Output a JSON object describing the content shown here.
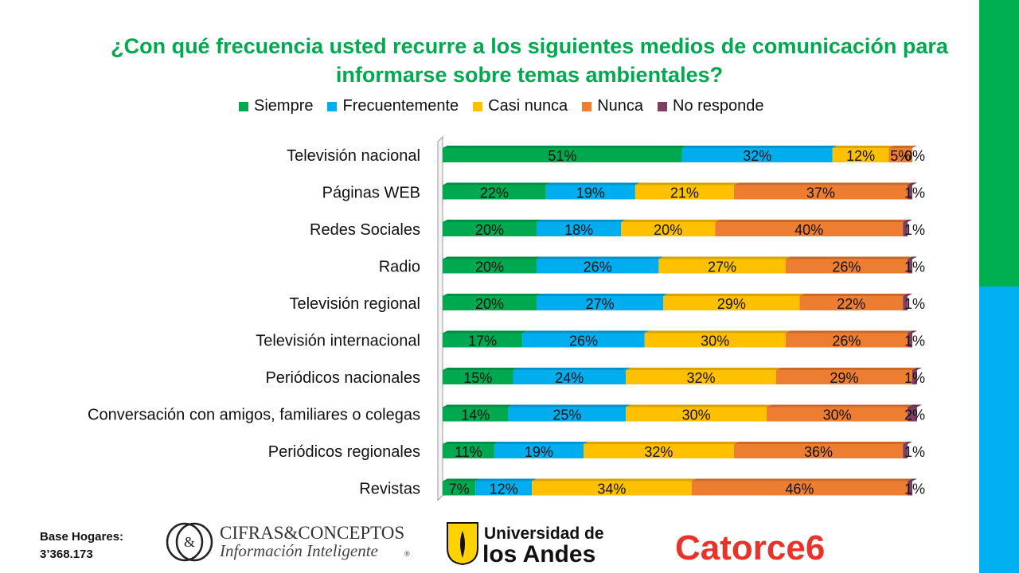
{
  "colors": {
    "siempre": "#00A94F",
    "frecuentemente": "#00AEEF",
    "casi_nunca": "#FFC000",
    "nunca": "#ED7D31",
    "no_responde": "#7B3F61",
    "title": "#00A94F",
    "side_green": "#00B050",
    "side_blue": "#00B0F0"
  },
  "title": {
    "line1": "¿Con qué frecuencia usted recurre a los siguientes medios de comunicación para",
    "line2": "informarse sobre temas ambientales?"
  },
  "legend": [
    "Siempre",
    "Frecuentemente",
    "Casi nunca",
    "Nunca",
    "No responde"
  ],
  "chart_data": {
    "type": "bar",
    "orientation": "horizontal",
    "stacked": "100%",
    "categories": [
      "Televisión nacional",
      "Páginas WEB",
      "Redes Sociales",
      "Radio",
      "Televisión regional",
      "Televisión internacional",
      "Periódicos nacionales",
      "Conversación con amigos, familiares o colegas",
      "Periódicos regionales",
      "Revistas"
    ],
    "series": [
      {
        "name": "Siempre",
        "values": [
          51,
          22,
          20,
          20,
          20,
          17,
          15,
          14,
          11,
          7
        ]
      },
      {
        "name": "Frecuentemente",
        "values": [
          32,
          19,
          18,
          26,
          27,
          26,
          24,
          25,
          19,
          12
        ]
      },
      {
        "name": "Casi nunca",
        "values": [
          12,
          21,
          20,
          27,
          29,
          30,
          32,
          30,
          32,
          34
        ]
      },
      {
        "name": "Nunca",
        "values": [
          5,
          37,
          40,
          26,
          22,
          26,
          29,
          30,
          36,
          46
        ]
      },
      {
        "name": "No responde",
        "values": [
          0,
          1,
          1,
          1,
          1,
          1,
          1,
          2,
          1,
          1
        ]
      }
    ],
    "data_label_suffix": "%",
    "legend_position": "top",
    "grid": false
  },
  "footer": {
    "base_label": "Base Hogares:",
    "base_value": "3’368.173"
  },
  "logos": {
    "cifras_line1": "CIFRAS&CONCEPTOS",
    "cifras_line2": "Información Inteligente",
    "cifras_mark": "®",
    "uandes_line1": "Universidad de",
    "uandes_line2": "los Andes",
    "catorce": "Catorce6"
  }
}
